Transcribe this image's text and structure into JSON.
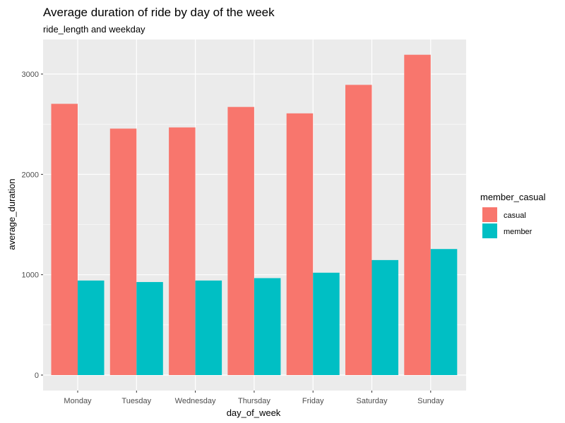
{
  "chart_data": {
    "type": "bar",
    "title": "Average duration of ride by day of the week",
    "subtitle": "ride_length and weekday",
    "xlabel": "day_of_week",
    "ylabel": "average_duration",
    "categories": [
      "Monday",
      "Tuesday",
      "Wednesday",
      "Thursday",
      "Friday",
      "Saturday",
      "Sunday"
    ],
    "series": [
      {
        "name": "casual",
        "color": "#F8766D",
        "values": [
          2703,
          2456,
          2468,
          2672,
          2608,
          2892,
          3192
        ]
      },
      {
        "name": "member",
        "color": "#00BFC4",
        "values": [
          942,
          927,
          942,
          966,
          1020,
          1146,
          1256
        ]
      }
    ],
    "ylim": [
      0,
      3300
    ],
    "yticks": [
      0,
      1000,
      2000,
      3000
    ],
    "yticklabels": [
      "0",
      "1000",
      "2000",
      "3000"
    ],
    "grid": true,
    "legend": {
      "title": "member_casual",
      "placement": "right"
    },
    "panel_background": "#EBEBEB",
    "grid_color": "#FFFFFF"
  }
}
